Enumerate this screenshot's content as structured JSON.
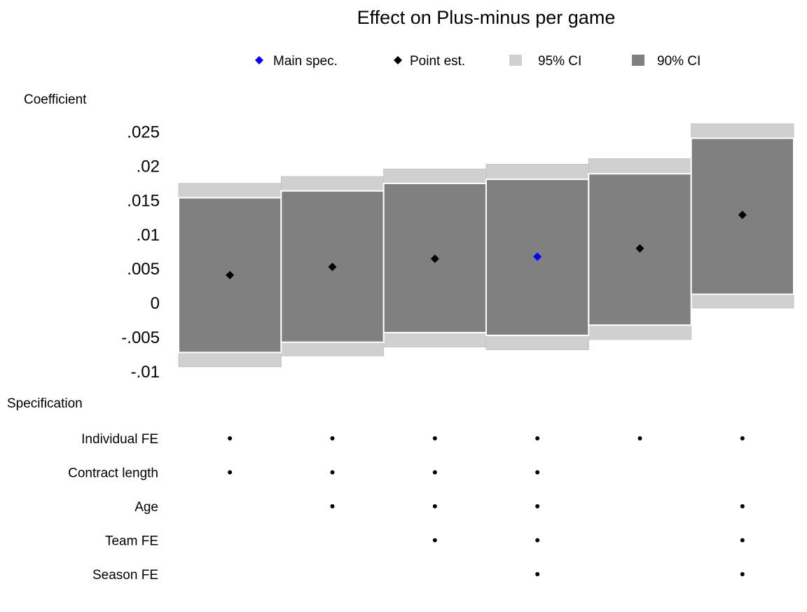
{
  "chart_data": {
    "type": "specification-curve",
    "title": "Effect on Plus-minus per game",
    "ylabel": "Coefficient",
    "spec_label": "Specification",
    "ylim": [
      -0.01,
      0.025
    ],
    "yticks": [
      {
        "v": 0.025,
        "label": ".025"
      },
      {
        "v": 0.02,
        "label": ".02"
      },
      {
        "v": 0.015,
        "label": ".015"
      },
      {
        "v": 0.01,
        "label": ".01"
      },
      {
        "v": 0.005,
        "label": ".005"
      },
      {
        "v": 0,
        "label": "0"
      },
      {
        "v": -0.005,
        "label": "-.005"
      },
      {
        "v": -0.01,
        "label": "-.01"
      }
    ],
    "legend": {
      "main": "Main spec.",
      "point": "Point est.",
      "ci95": "95% CI",
      "ci90": "90% CI"
    },
    "colors": {
      "main": "#0000ff",
      "point": "#000000",
      "ci95": "#d0d0d0",
      "ci90": "#808080"
    },
    "estimates": [
      {
        "point": 0.004,
        "ci90": [
          -0.0073,
          0.0153
        ],
        "ci95": [
          -0.0094,
          0.0174
        ],
        "main": false
      },
      {
        "point": 0.0052,
        "ci90": [
          -0.0058,
          0.0163
        ],
        "ci95": [
          -0.0078,
          0.0184
        ],
        "main": false
      },
      {
        "point": 0.0064,
        "ci90": [
          -0.0044,
          0.0174
        ],
        "ci95": [
          -0.0065,
          0.0195
        ],
        "main": false
      },
      {
        "point": 0.0067,
        "ci90": [
          -0.0048,
          0.018
        ],
        "ci95": [
          -0.0069,
          0.0202
        ],
        "main": true
      },
      {
        "point": 0.0079,
        "ci90": [
          -0.0033,
          0.0188
        ],
        "ci95": [
          -0.0054,
          0.021
        ],
        "main": false
      },
      {
        "point": 0.0128,
        "ci90": [
          0.0012,
          0.024
        ],
        "ci95": [
          -0.0008,
          0.0261
        ],
        "main": false
      }
    ],
    "specifications": [
      {
        "label": "Individual FE",
        "included": [
          true,
          true,
          true,
          true,
          true,
          true
        ]
      },
      {
        "label": "Contract length",
        "included": [
          true,
          true,
          true,
          true,
          false,
          false
        ]
      },
      {
        "label": "Age",
        "included": [
          false,
          true,
          true,
          true,
          false,
          true
        ]
      },
      {
        "label": "Team FE",
        "included": [
          false,
          false,
          true,
          true,
          false,
          true
        ]
      },
      {
        "label": "Season FE",
        "included": [
          false,
          false,
          false,
          true,
          false,
          true
        ]
      }
    ]
  }
}
